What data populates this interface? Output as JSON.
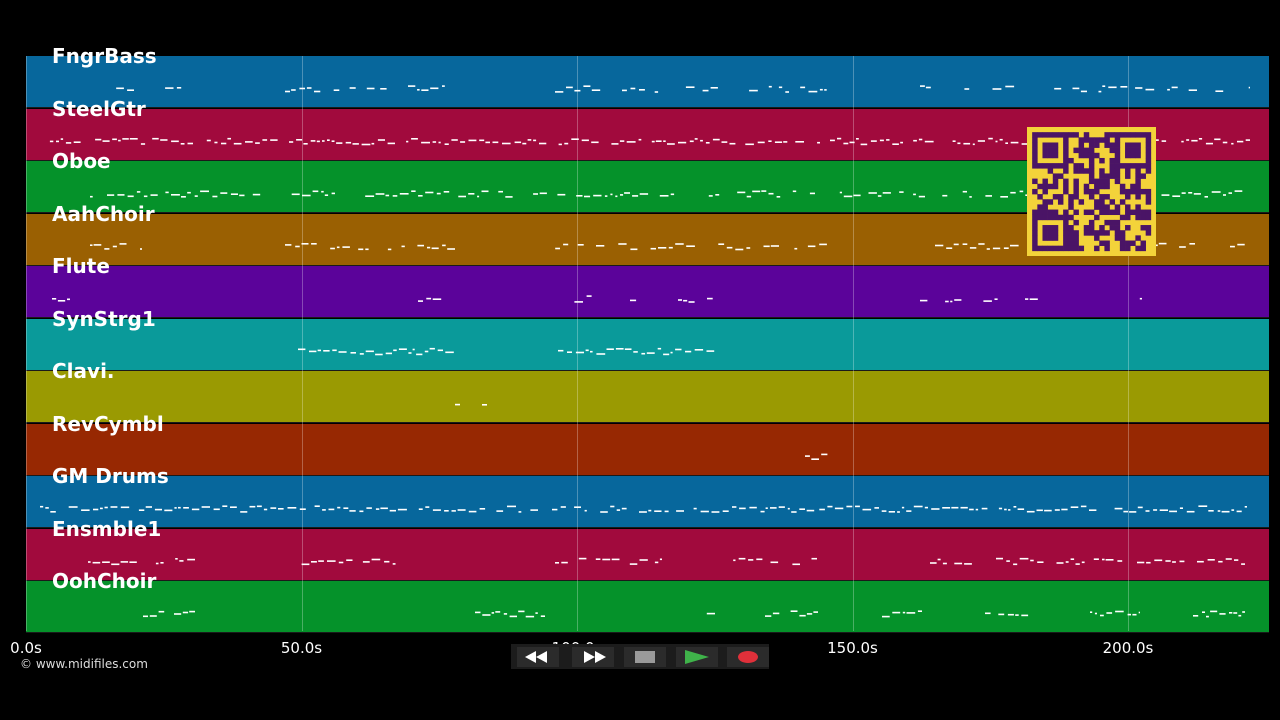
{
  "tracks": [
    {
      "name": "FngrBass",
      "color": "#07679c"
    },
    {
      "name": "SteelGtr",
      "color": "#a10a3d"
    },
    {
      "name": "Oboe",
      "color": "#05922a"
    },
    {
      "name": "AahChoir",
      "color": "#9a6002"
    },
    {
      "name": "Flute",
      "color": "#5b039a"
    },
    {
      "name": "SynStrg1",
      "color": "#0a9a9a"
    },
    {
      "name": "Clavi.",
      "color": "#9a9a02"
    },
    {
      "name": "RevCymbl",
      "color": "#972802"
    },
    {
      "name": "GM Drums",
      "color": "#07679c"
    },
    {
      "name": "Ensmble1",
      "color": "#a10a3d"
    },
    {
      "name": "OohChoir",
      "color": "#05922a"
    }
  ],
  "timeline": {
    "ticks": [
      {
        "label": "0.0s",
        "seconds": 0
      },
      {
        "label": "50.0s",
        "seconds": 50
      },
      {
        "label": "100.0s",
        "seconds": 100
      },
      {
        "label": "150.0s",
        "seconds": 150
      },
      {
        "label": "200.0s",
        "seconds": 200
      }
    ],
    "duration_seconds": 225.5
  },
  "copyright": "© www.midifiles.com",
  "transport": {
    "rewind_icon": "rewind-icon",
    "fast_forward_icon": "fast-forward-icon",
    "stop_icon": "stop-icon",
    "play_icon": "play-icon",
    "record_icon": "record-icon",
    "play_color": "#3fb34a",
    "record_color": "#e0303a"
  },
  "qr_code": {
    "color": "#f3d33a",
    "dark": "#4a1466"
  }
}
